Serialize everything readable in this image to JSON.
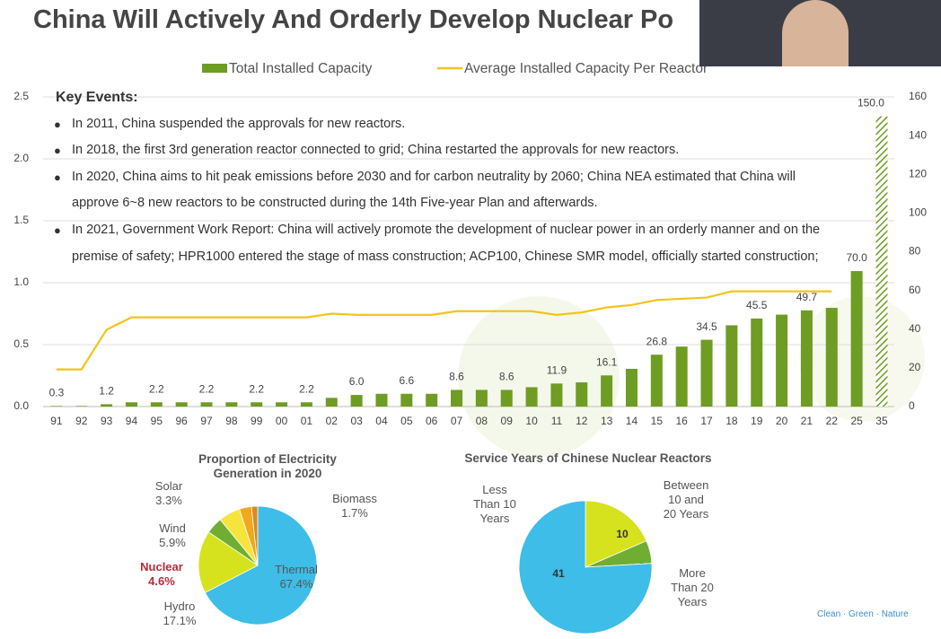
{
  "title": "China Will Actively And Orderly Develop Nuclear Po",
  "key_events": {
    "heading": "Key Events:",
    "items": [
      "In 2011, China suspended the approvals for new reactors.",
      "In 2018, the first 3rd generation reactor connected to grid; China restarted the approvals for new reactors.",
      "In 2020, China aims to hit peak emissions before 2030 and for carbon neutrality by 2060; China NEA estimated that China will approve 6~8 new reactors to be constructed during the 14th Five-year Plan and afterwards.",
      "In 2021, Government Work Report: China will actively promote the development of nuclear power in an orderly manner and on the premise of safety; HPR1000 entered the stage of mass construction; ACP100, Chinese SMR model, officially started construction;"
    ]
  },
  "footer": "Clean · Green · Nature",
  "chart_data": [
    {
      "type": "bar-line",
      "categories": [
        "91",
        "92",
        "93",
        "94",
        "95",
        "96",
        "97",
        "98",
        "99",
        "00",
        "01",
        "02",
        "03",
        "04",
        "05",
        "06",
        "07",
        "08",
        "09",
        "10",
        "11",
        "12",
        "13",
        "14",
        "15",
        "16",
        "17",
        "18",
        "19",
        "20",
        "21",
        "22",
        "25",
        "35"
      ],
      "series": [
        {
          "name": "Total Installed Capacity",
          "color": "#6f9c22",
          "axis": "y2",
          "values": [
            0.3,
            0.3,
            1.2,
            2.2,
            2.2,
            2.2,
            2.2,
            2.2,
            2.2,
            2.2,
            2.2,
            4.5,
            6.0,
            6.6,
            6.6,
            6.6,
            8.6,
            8.6,
            8.6,
            10.0,
            11.9,
            12.5,
            16.1,
            19.5,
            26.8,
            31.0,
            34.5,
            42.0,
            45.5,
            47.5,
            49.7,
            51.0,
            70.0,
            150.0
          ],
          "value_labels": [
            "0.3",
            null,
            "1.2",
            null,
            "2.2",
            null,
            "2.2",
            null,
            "2.2",
            null,
            "2.2",
            null,
            "6.0",
            null,
            "6.6",
            null,
            "8.6",
            null,
            "8.6",
            null,
            "11.9",
            null,
            "16.1",
            null,
            "26.8",
            null,
            "34.5",
            null,
            "45.5",
            null,
            "49.7",
            null,
            "70.0",
            "150.0"
          ]
        },
        {
          "name": "Average Installed Capacity Per Reactor",
          "color": "#f2c41a",
          "values": [
            0.3,
            0.3,
            0.62,
            0.72,
            0.72,
            0.72,
            0.72,
            0.72,
            0.72,
            0.72,
            0.72,
            0.75,
            0.74,
            0.74,
            0.74,
            0.74,
            0.77,
            0.77,
            0.77,
            0.77,
            0.74,
            0.76,
            0.8,
            0.82,
            0.86,
            0.87,
            0.88,
            0.93,
            0.93,
            0.93,
            0.93,
            0.93,
            null,
            null
          ]
        }
      ],
      "hatched_categories": [
        "35"
      ],
      "ylim": [
        0,
        2.5
      ],
      "yticks": [
        {
          "value": 0,
          "label": "0.0"
        },
        0.5,
        {
          "value": 1,
          "label": "1.0"
        },
        1.5,
        {
          "value": 2,
          "label": "2.0"
        },
        2.5
      ],
      "y2lim": [
        0,
        160
      ],
      "y2ticks": [
        0,
        20,
        40,
        60,
        80,
        100,
        120,
        140,
        160
      ],
      "grid": true,
      "legend": "top"
    },
    {
      "type": "pie",
      "title": "Proportion of Electricity Generation in 2020",
      "categories": [
        "Thermal",
        "Hydro",
        "Nuclear",
        "Wind",
        "Solar",
        "Biomass"
      ],
      "values": [
        67.4,
        17.1,
        4.6,
        5.9,
        3.3,
        1.7
      ],
      "value_labels": [
        "67.4%",
        "17.1%",
        "4.6%",
        "5.9%",
        "3.3%",
        "1.7%"
      ],
      "colors": [
        "#3dbde8",
        "#d6e21e",
        "#6fae33",
        "#f6e43c",
        "#f2a81c",
        "#d98a22"
      ]
    },
    {
      "type": "pie",
      "title": "Service Years of Chinese Nuclear Reactors",
      "categories": [
        "Between 10 and 20 Years",
        "More Than 20 Years",
        "Less Than 10 Years"
      ],
      "values": [
        10,
        3,
        41
      ],
      "colors": [
        "#d6e21e",
        "#6fae33",
        "#3dbde8"
      ]
    }
  ]
}
